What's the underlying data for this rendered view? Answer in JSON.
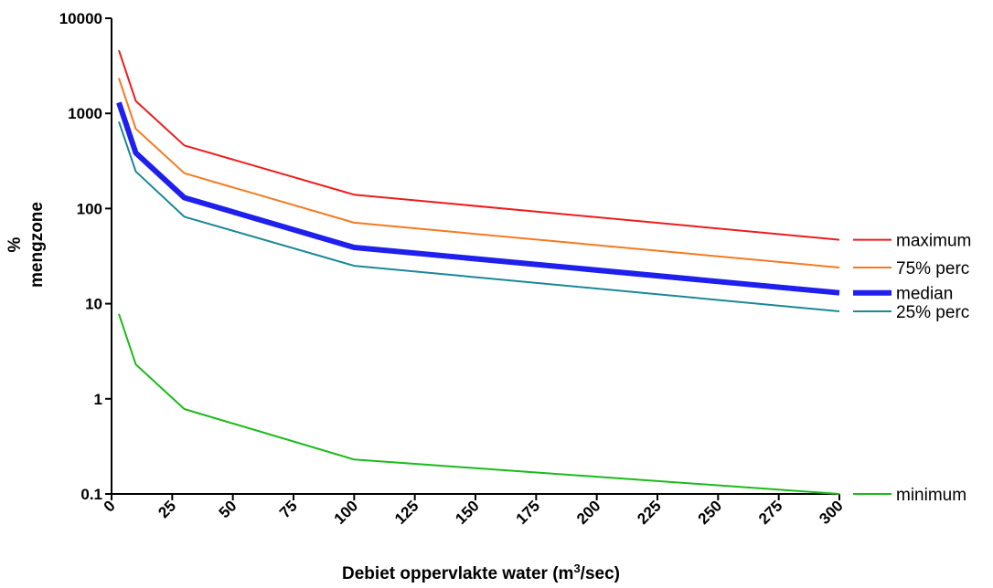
{
  "chart_data": {
    "type": "line",
    "ylabel_line1": "%",
    "ylabel_line2": "mengzone",
    "xlabel_pre": "Debiet oppervlakte water (m",
    "xlabel_sup": "3",
    "xlabel_post": "/sec)",
    "x": [
      3,
      10,
      30,
      100,
      300
    ],
    "xlim": [
      0,
      300
    ],
    "xticks": [
      0,
      25,
      50,
      75,
      100,
      125,
      150,
      175,
      200,
      225,
      250,
      275,
      300
    ],
    "y_scale": "log",
    "ylim": [
      0.1,
      10000
    ],
    "yticks": [
      {
        "value": 10000,
        "label": "10000"
      },
      {
        "value": 1000,
        "label": "1000"
      },
      {
        "value": 100,
        "label": "100"
      },
      {
        "value": 10,
        "label": "10"
      },
      {
        "value": 1,
        "label": "1"
      },
      {
        "value": 0.1,
        "label": "0.1"
      }
    ],
    "legend_position": "right",
    "series": [
      {
        "name": "maximum",
        "color": "#ee1c1c",
        "width": "normal",
        "values": [
          4600,
          1350,
          460,
          140,
          47
        ]
      },
      {
        "name": "75% perc",
        "color": "#f57a1f",
        "width": "normal",
        "values": [
          2350,
          690,
          235,
          71,
          24
        ]
      },
      {
        "name": "median",
        "color": "#1f1fee",
        "width": "thick",
        "values": [
          1300,
          385,
          130,
          39,
          13
        ]
      },
      {
        "name": "25% perc",
        "color": "#1a8896",
        "width": "normal",
        "values": [
          820,
          245,
          82,
          25,
          8.3
        ]
      },
      {
        "name": "minimum",
        "color": "#1bbb1b",
        "width": "normal",
        "values": [
          7.8,
          2.3,
          0.78,
          0.23,
          0.1
        ]
      }
    ]
  }
}
